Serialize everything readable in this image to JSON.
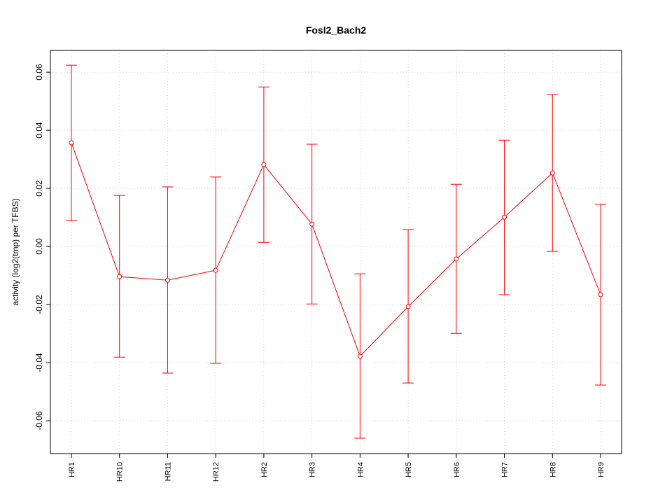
{
  "chart_data": {
    "type": "line",
    "title": "Fosl2_Bach2",
    "xlabel": "",
    "ylabel": "activity (log2(tmp) per TFBS)",
    "categories": [
      "HR1",
      "HR10",
      "HR11",
      "HR12",
      "HR2",
      "HR3",
      "HR4",
      "HR5",
      "HR6",
      "HR7",
      "HR8",
      "HR9"
    ],
    "series": [
      {
        "name": "activity",
        "values": [
          0.0357,
          -0.0104,
          -0.0116,
          -0.0082,
          0.0282,
          0.0077,
          -0.0378,
          -0.0207,
          -0.0043,
          0.0101,
          0.0253,
          -0.0166
        ],
        "upper": [
          0.0624,
          0.0176,
          0.0205,
          0.0239,
          0.0549,
          0.0352,
          -0.0094,
          0.0058,
          0.0214,
          0.0366,
          0.0523,
          0.0145
        ],
        "lower": [
          0.0089,
          -0.0381,
          -0.0436,
          -0.0402,
          0.0014,
          -0.0198,
          -0.066,
          -0.047,
          -0.0299,
          -0.0166,
          -0.0017,
          -0.0477
        ],
        "color": "#ff0000"
      }
    ],
    "yticks": [
      0.06,
      0.04,
      0.02,
      0.0,
      -0.02,
      -0.04,
      -0.06
    ],
    "ytick_labels": [
      "0.06",
      "0.04",
      "0.02",
      "0.00",
      "-0.02",
      "-0.04",
      "-0.06"
    ],
    "ylim": [
      -0.0713,
      0.0675
    ],
    "grid": true
  }
}
